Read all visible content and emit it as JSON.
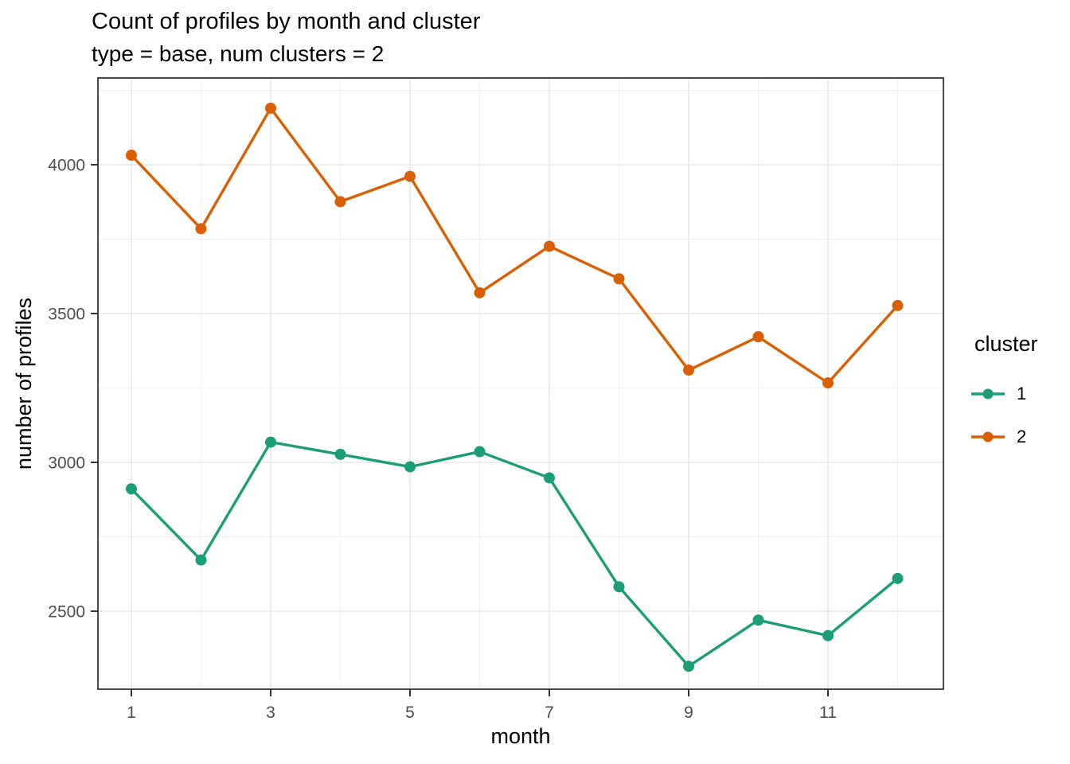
{
  "title": "Count of profiles by month and cluster",
  "subtitle": "type = base, num clusters = 2",
  "chart_data": {
    "type": "line",
    "title": "Count of profiles by month and cluster",
    "subtitle": "type = base, num clusters = 2",
    "xlabel": "month",
    "ylabel": "number of profiles",
    "x": [
      1,
      2,
      3,
      4,
      5,
      6,
      7,
      8,
      9,
      10,
      11,
      12
    ],
    "series": [
      {
        "name": "1",
        "color": "#1B9E77",
        "values": [
          2911,
          2672,
          3068,
          3027,
          2985,
          3036,
          2948,
          2582,
          2315,
          2470,
          2418,
          2610
        ]
      },
      {
        "name": "2",
        "color": "#D95F02",
        "values": [
          4032,
          3785,
          4190,
          3876,
          3961,
          3570,
          3726,
          3617,
          3310,
          3422,
          3267,
          3527
        ]
      }
    ],
    "x_ticks": [
      1,
      3,
      5,
      7,
      9,
      11
    ],
    "x_minor": [
      2,
      4,
      6,
      8,
      10,
      12
    ],
    "y_ticks": [
      2500,
      3000,
      3500,
      4000
    ],
    "y_minor": [
      2250,
      2750,
      3250,
      3750,
      4250
    ],
    "xlim": [
      0.52,
      12.66
    ],
    "ylim": [
      2238,
      4292
    ],
    "grid": true,
    "legend_title": "cluster",
    "legend_position": "right"
  },
  "legend": {
    "title": "cluster",
    "items": [
      {
        "label": "1",
        "color": "#1B9E77"
      },
      {
        "label": "2",
        "color": "#D95F02"
      }
    ]
  },
  "colors": {
    "panel_background": "#FFFFFF",
    "panel_border": "#333333",
    "grid_major": "#E7E7E7",
    "grid_minor": "#F1F1F1",
    "tick": "#333333",
    "tick_label": "#4D4D4D"
  }
}
